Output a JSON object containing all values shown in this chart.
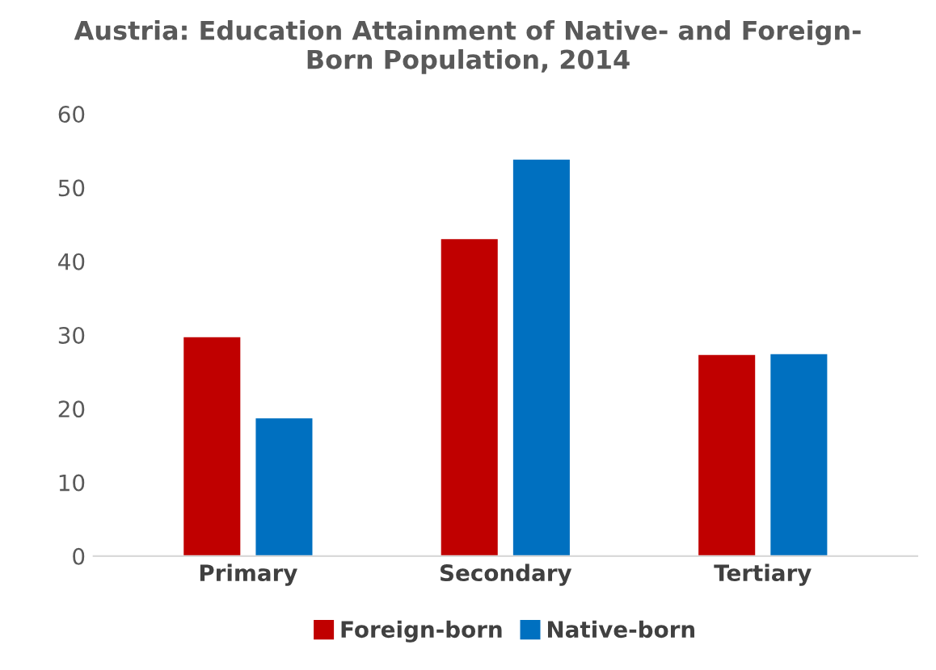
{
  "chart_data": {
    "type": "bar",
    "title": "Austria: Education Attainment of Native- and Foreign-\nBorn Population, 2014",
    "categories": [
      "Primary",
      "Secondary",
      "Tertiary"
    ],
    "series": [
      {
        "name": "Foreign-born",
        "color": "#c00000",
        "values": [
          29.7,
          43.0,
          27.3
        ]
      },
      {
        "name": "Native-born",
        "color": "#0070c0",
        "values": [
          18.7,
          53.8,
          27.4
        ]
      }
    ],
    "ylim": [
      0,
      60
    ],
    "yticks": [
      0,
      10,
      20,
      30,
      40,
      50,
      60
    ],
    "grid": false,
    "legend": "bottom"
  }
}
